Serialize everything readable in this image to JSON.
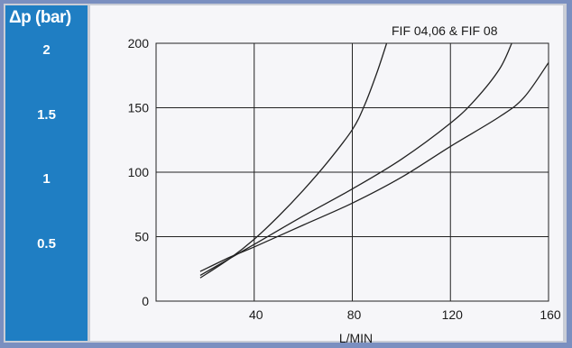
{
  "colors": {
    "panel": "#1f7ec3",
    "plot_bg": "#f6f6f9",
    "frame": "#c9cdd6",
    "outer": "#7a8fc0",
    "line": "#222222"
  },
  "bar_axis": {
    "title": "Δp (bar)",
    "ticks": [
      {
        "label": "2",
        "value": 200
      },
      {
        "label": "1.5",
        "value": 150
      },
      {
        "label": "1",
        "value": 100
      },
      {
        "label": "0.5",
        "value": 50
      }
    ]
  },
  "chart_data": {
    "type": "line",
    "title": "FIF 04,06 & FIF 08",
    "xlabel": "L/MIN",
    "ylabel": "",
    "xlim": [
      0,
      160
    ],
    "ylim": [
      0,
      200
    ],
    "x_ticks": [
      40,
      80,
      120,
      160
    ],
    "y_ticks": [
      0,
      50,
      100,
      150,
      200
    ],
    "grid": true,
    "series": [
      {
        "x": [
          18,
          30,
          40,
          50,
          60,
          70,
          80,
          85,
          90,
          94
        ],
        "y": [
          18,
          33,
          48,
          66,
          86,
          108,
          133,
          152,
          177,
          200
        ]
      },
      {
        "x": [
          18,
          30,
          40,
          60,
          80,
          100,
          120,
          130,
          140,
          145
        ],
        "y": [
          20,
          33,
          44,
          66,
          87,
          110,
          138,
          156,
          180,
          200
        ]
      },
      {
        "x": [
          18,
          30,
          40,
          60,
          80,
          100,
          120,
          140,
          150,
          160
        ],
        "y": [
          23,
          34,
          42,
          59,
          76,
          96,
          120,
          143,
          158,
          185
        ]
      }
    ]
  }
}
